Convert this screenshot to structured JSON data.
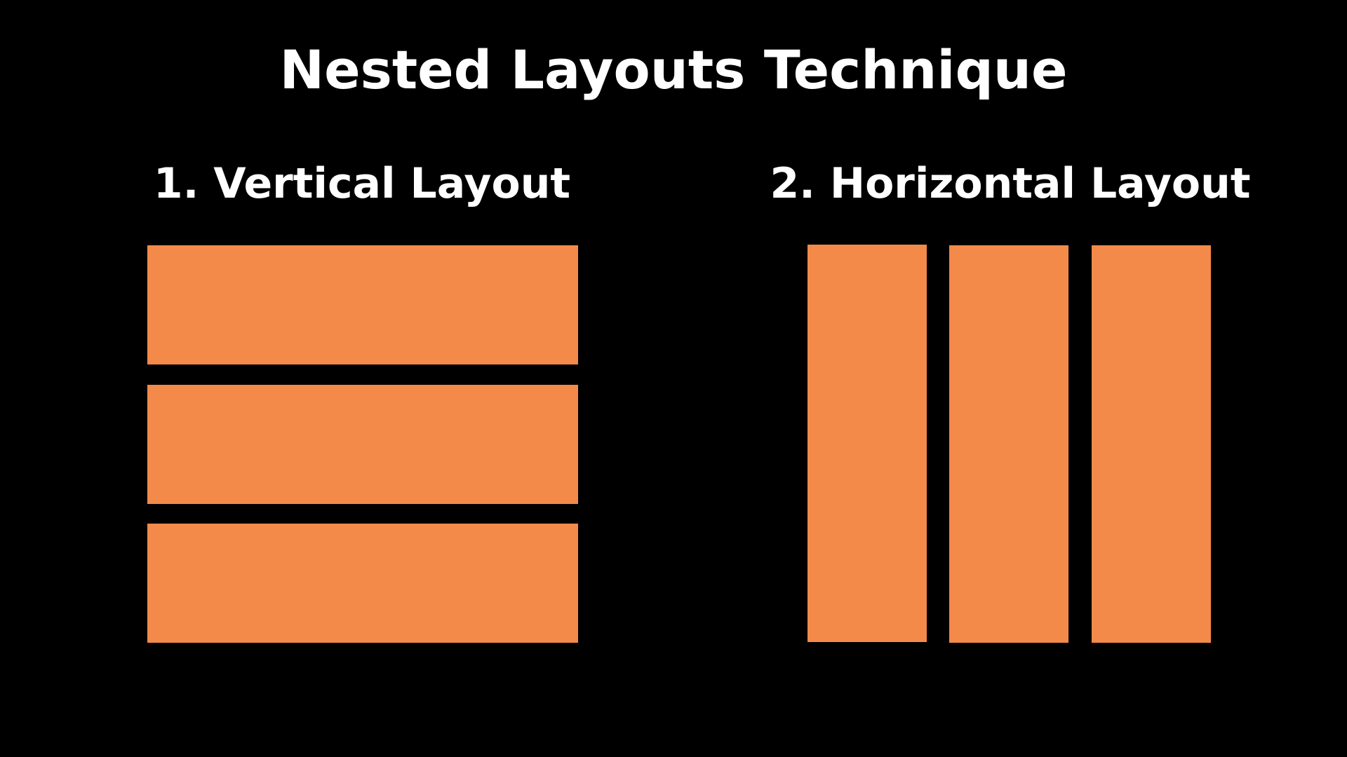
{
  "slide": {
    "title": "Nested Layouts Technique",
    "background_color": "#000000",
    "text_color": "#ffffff",
    "accent_color": "#f48a4a"
  },
  "vertical_layout": {
    "heading": "1. Vertical Layout",
    "block_count": 3
  },
  "horizontal_layout": {
    "heading": "2. Horizontal Layout",
    "block_count": 3
  }
}
